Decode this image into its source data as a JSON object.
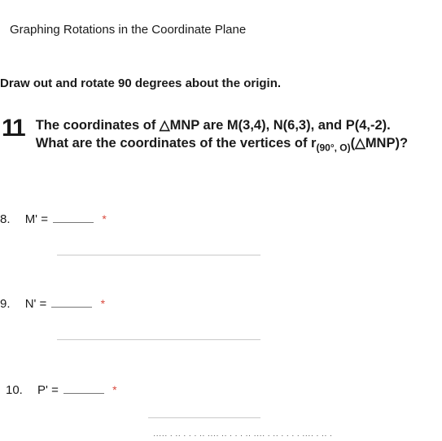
{
  "header": "Graphing Rotations in the Coordinate Plane",
  "instruction": "Draw out and rotate 90 degrees about the origin.",
  "problem": {
    "number": "11",
    "line1_a": "The coordinates of ",
    "line1_tri": "△",
    "line1_b": "MNP are M(3,4), N(6,3), and P(4,-2).",
    "line2_a": "What are the coordinates of the vertices of r",
    "line2_sub": "(90°, O)",
    "line2_b": "(",
    "line2_tri": "△",
    "line2_c": "MNP)?"
  },
  "answers": {
    "q8": {
      "num": "8.",
      "label": "M' ="
    },
    "q9": {
      "num": "9.",
      "label": "N' ="
    },
    "q10": {
      "num": "10.",
      "label": "P' ="
    }
  },
  "footer_fragment": "····· · ·· · · · ·· ···· ·· · · · ·· ···· · ·· · · · · ···· · ·· ·"
}
